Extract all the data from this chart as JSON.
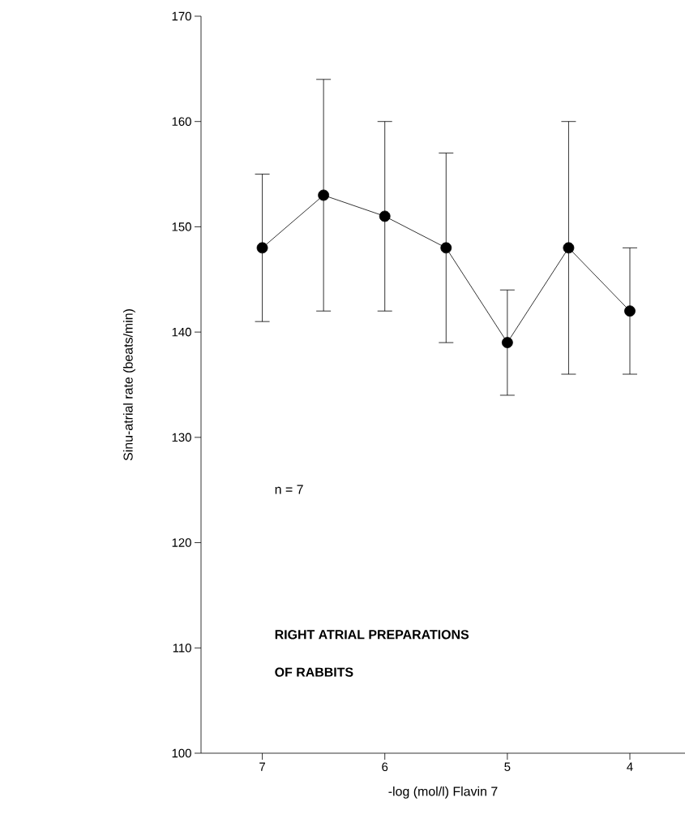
{
  "chart_data": {
    "type": "line",
    "xlabel": "-log (mol/l) Flavin 7",
    "ylabel": "Sinu-atrial rate   (beats/min)",
    "x": [
      7,
      6.5,
      6,
      5.5,
      5,
      4.5,
      4
    ],
    "values": [
      148,
      153,
      151,
      148,
      139,
      148,
      142
    ],
    "errors": [
      [
        141,
        155
      ],
      [
        142,
        164
      ],
      [
        142,
        160
      ],
      [
        139,
        157
      ],
      [
        134,
        144
      ],
      [
        136,
        160
      ],
      [
        136,
        148
      ]
    ],
    "color": "#000000",
    "marker": "circle",
    "line_style": "solid",
    "xlim": [
      7.5,
      3.55
    ],
    "xticks": [
      7,
      6,
      5,
      4
    ],
    "ylim": [
      100,
      170
    ],
    "yticks": [
      100,
      110,
      120,
      130,
      140,
      150,
      160,
      170
    ],
    "annotations": [
      "n = 7",
      "RIGHT ATRIAL PREPARATIONS",
      "OF RABBITS"
    ]
  }
}
